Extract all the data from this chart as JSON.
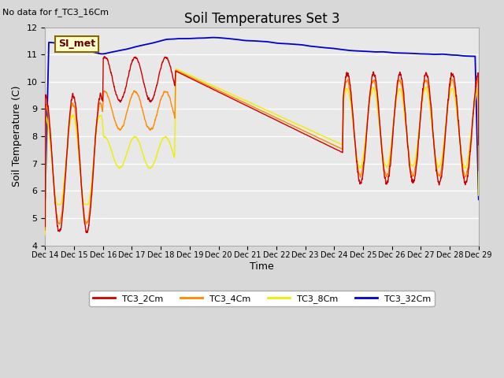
{
  "title": "Soil Temperatures Set 3",
  "top_left_text": "No data for f_TC3_16Cm",
  "xlabel": "Time",
  "ylabel": "Soil Temperature (C)",
  "ylim": [
    4.0,
    12.0
  ],
  "yticks": [
    4.0,
    5.0,
    6.0,
    7.0,
    8.0,
    9.0,
    10.0,
    11.0,
    12.0
  ],
  "fig_bg_color": "#d8d8d8",
  "axes_bg_color": "#e8e8e8",
  "line_colors": [
    "#cc0000",
    "#ff8800",
    "#eeee00",
    "#0000cc"
  ],
  "legend_entries": [
    "TC3_2Cm",
    "TC3_4Cm",
    "TC3_8Cm",
    "TC3_32Cm"
  ],
  "si_met_label": "SI_met",
  "si_met_bg": "#ffffcc",
  "si_met_border": "#886600"
}
